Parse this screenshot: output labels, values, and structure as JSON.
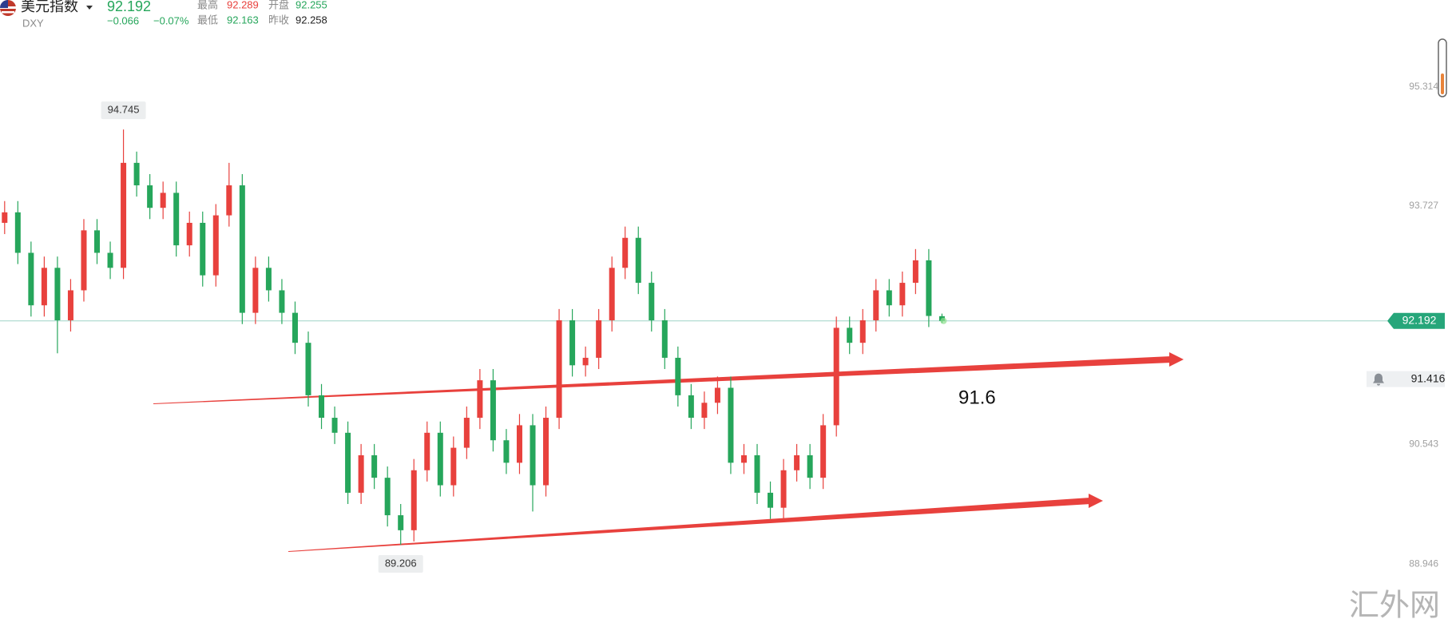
{
  "chart_data": {
    "type": "candlestick",
    "title": "美元指数",
    "symbol": "DXY",
    "change": {
      "value": -0.066,
      "label": "−0.066"
    },
    "change_percent": {
      "value": -0.07,
      "label": "−0.07%"
    },
    "stat_labels": {
      "high": "最高",
      "open": "开盘",
      "low": "最低",
      "prev_close": "昨收"
    },
    "up_color": "#e8413d",
    "down_color": "#26a65b",
    "ylim": [
      88.056,
      96.472
    ],
    "yticks": [
      88.946,
      90.543,
      93.727,
      95.314
    ],
    "open": [
      93.5,
      93.64,
      93.1,
      92.4,
      92.9,
      92.2,
      92.6,
      93.4,
      93.1,
      92.9,
      94.3,
      94.0,
      93.7,
      93.9,
      93.2,
      93.5,
      92.8,
      93.6,
      94.0,
      92.3,
      92.9,
      92.6,
      92.3,
      91.9,
      91.2,
      90.9,
      90.7,
      89.9,
      90.4,
      90.1,
      89.6,
      89.4,
      90.2,
      90.7,
      90.0,
      90.5,
      90.9,
      91.4,
      90.6,
      90.3,
      90.8,
      90.0,
      90.9,
      92.2,
      91.6,
      91.7,
      92.2,
      92.9,
      93.3,
      92.7,
      92.2,
      91.7,
      91.2,
      90.9,
      91.1,
      91.3,
      90.3,
      90.4,
      89.9,
      89.7,
      90.2,
      90.4,
      90.1,
      90.8,
      92.1,
      91.9,
      92.2,
      92.6,
      92.4,
      92.7,
      93.0,
      92.255
    ],
    "high": [
      93.79,
      93.79,
      93.25,
      93.05,
      93.05,
      92.75,
      93.55,
      93.55,
      93.25,
      94.745,
      94.45,
      94.15,
      94.05,
      94.05,
      93.65,
      93.65,
      93.75,
      94.3,
      94.15,
      93.05,
      93.05,
      92.75,
      92.45,
      92.05,
      91.35,
      91.05,
      90.85,
      90.55,
      90.55,
      90.25,
      89.75,
      90.35,
      90.85,
      90.85,
      90.65,
      91.05,
      91.55,
      91.55,
      90.75,
      90.95,
      90.95,
      91.05,
      92.35,
      92.35,
      91.85,
      92.35,
      93.05,
      93.45,
      93.45,
      92.85,
      92.35,
      91.85,
      91.35,
      91.25,
      91.45,
      91.45,
      90.55,
      90.55,
      90.05,
      90.35,
      90.55,
      90.55,
      90.95,
      92.25,
      92.25,
      92.35,
      92.75,
      92.75,
      92.85,
      93.15,
      93.15,
      92.289
    ],
    "low": [
      93.35,
      92.95,
      92.25,
      92.25,
      91.76,
      92.05,
      92.45,
      92.95,
      92.75,
      92.75,
      93.85,
      93.55,
      93.55,
      93.05,
      93.05,
      92.65,
      92.65,
      93.45,
      92.15,
      92.15,
      92.45,
      92.15,
      91.75,
      91.05,
      90.75,
      90.55,
      89.75,
      89.75,
      89.95,
      89.45,
      89.206,
      89.25,
      90.05,
      89.85,
      89.85,
      90.35,
      90.75,
      90.45,
      90.15,
      90.15,
      89.65,
      89.85,
      90.75,
      91.45,
      91.45,
      91.55,
      92.05,
      92.75,
      92.55,
      92.05,
      91.55,
      91.05,
      90.75,
      90.75,
      90.95,
      90.15,
      90.15,
      89.75,
      89.55,
      89.55,
      90.05,
      89.95,
      89.95,
      90.65,
      91.75,
      91.75,
      92.05,
      92.25,
      92.25,
      92.55,
      92.11,
      92.163
    ],
    "close": [
      93.64,
      93.1,
      92.4,
      92.9,
      92.2,
      92.6,
      93.4,
      93.1,
      92.9,
      94.3,
      94.0,
      93.7,
      93.9,
      93.2,
      93.5,
      92.8,
      93.6,
      94.0,
      92.3,
      92.9,
      92.6,
      92.3,
      91.9,
      91.2,
      90.9,
      90.7,
      89.9,
      90.4,
      90.1,
      89.6,
      89.4,
      90.2,
      90.7,
      90.0,
      90.5,
      90.9,
      91.4,
      90.6,
      90.3,
      90.8,
      90.0,
      90.9,
      92.2,
      91.6,
      91.7,
      92.2,
      92.9,
      93.3,
      92.7,
      92.2,
      91.7,
      91.2,
      90.9,
      91.1,
      91.3,
      90.3,
      90.4,
      89.9,
      89.7,
      90.2,
      90.4,
      90.1,
      90.8,
      92.1,
      91.9,
      92.2,
      92.6,
      92.4,
      92.7,
      93.0,
      92.258,
      92.192
    ],
    "alert": 91.416,
    "annotation": "91.6"
  },
  "watermark": "汇外网"
}
